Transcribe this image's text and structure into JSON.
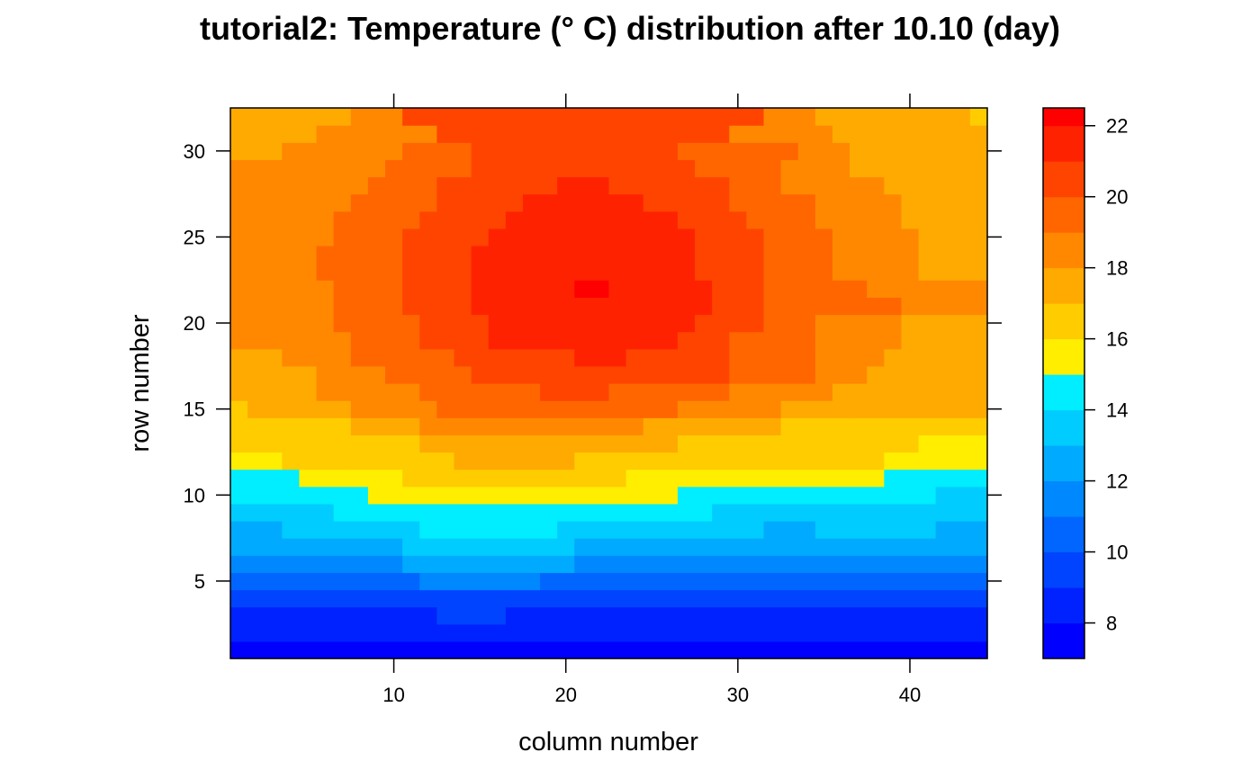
{
  "chart_data": {
    "type": "heatmap",
    "title": "tutorial2: Temperature (° C) distribution after 10.10 (day)",
    "xlabel": "column number",
    "ylabel": "row number",
    "xlim": [
      0.5,
      44.5
    ],
    "ylim": [
      0.5,
      32.5
    ],
    "x_ticks": [
      10,
      20,
      30,
      40
    ],
    "y_ticks": [
      5,
      10,
      15,
      20,
      25,
      30
    ],
    "grid": false,
    "legend": "right",
    "colorbar": {
      "min": 7,
      "max": 22.5,
      "ticks": [
        8,
        10,
        12,
        14,
        16,
        18,
        20,
        22
      ],
      "bands": [
        {
          "from": 7,
          "to": 8,
          "color": "#0000ff"
        },
        {
          "from": 8,
          "to": 9,
          "color": "#0022ff"
        },
        {
          "from": 9,
          "to": 10,
          "color": "#0044ff"
        },
        {
          "from": 10,
          "to": 11,
          "color": "#0066ff"
        },
        {
          "from": 11,
          "to": 12,
          "color": "#0088ff"
        },
        {
          "from": 12,
          "to": 13,
          "color": "#00aaff"
        },
        {
          "from": 13,
          "to": 14,
          "color": "#00ccff"
        },
        {
          "from": 14,
          "to": 15,
          "color": "#00eeff"
        },
        {
          "from": 15,
          "to": 16,
          "color": "#ffee00"
        },
        {
          "from": 16,
          "to": 17,
          "color": "#ffcc00"
        },
        {
          "from": 17,
          "to": 18,
          "color": "#ffaa00"
        },
        {
          "from": 18,
          "to": 19,
          "color": "#ff8800"
        },
        {
          "from": 19,
          "to": 20,
          "color": "#ff6600"
        },
        {
          "from": 20,
          "to": 21,
          "color": "#ff4400"
        },
        {
          "from": 21,
          "to": 22,
          "color": "#ff2200"
        },
        {
          "from": 22,
          "to": 22.5,
          "color": "#ff0000"
        }
      ]
    },
    "rows": [
      {
        "row": 1,
        "runs": [
          [
            1,
            44,
            7.5
          ]
        ]
      },
      {
        "row": 2,
        "runs": [
          [
            1,
            44,
            8.5
          ]
        ]
      },
      {
        "row": 3,
        "runs": [
          [
            1,
            12,
            8.5
          ],
          [
            13,
            16,
            9.5
          ],
          [
            17,
            44,
            8.5
          ]
        ]
      },
      {
        "row": 4,
        "runs": [
          [
            1,
            44,
            9.5
          ]
        ]
      },
      {
        "row": 5,
        "runs": [
          [
            1,
            11,
            10.5
          ],
          [
            12,
            18,
            11.5
          ],
          [
            19,
            44,
            10.5
          ]
        ]
      },
      {
        "row": 6,
        "runs": [
          [
            1,
            10,
            11.5
          ],
          [
            11,
            20,
            12.5
          ],
          [
            21,
            44,
            11.5
          ]
        ]
      },
      {
        "row": 7,
        "runs": [
          [
            1,
            10,
            12.5
          ],
          [
            11,
            20,
            13.5
          ],
          [
            21,
            44,
            12.5
          ]
        ]
      },
      {
        "row": 8,
        "runs": [
          [
            1,
            3,
            12.5
          ],
          [
            4,
            11,
            13.5
          ],
          [
            12,
            19,
            14.5
          ],
          [
            20,
            31,
            13.5
          ],
          [
            32,
            34,
            12.5
          ],
          [
            35,
            41,
            13.5
          ],
          [
            42,
            44,
            12.5
          ]
        ]
      },
      {
        "row": 9,
        "runs": [
          [
            1,
            6,
            13.5
          ],
          [
            7,
            28,
            14.5
          ],
          [
            29,
            44,
            13.5
          ]
        ]
      },
      {
        "row": 10,
        "runs": [
          [
            1,
            8,
            14.5
          ],
          [
            9,
            26,
            15.5
          ],
          [
            27,
            41,
            14.5
          ],
          [
            42,
            44,
            13.5
          ]
        ]
      },
      {
        "row": 11,
        "runs": [
          [
            1,
            4,
            14.5
          ],
          [
            5,
            10,
            15.5
          ],
          [
            11,
            23,
            16.5
          ],
          [
            24,
            38,
            15.5
          ],
          [
            39,
            41,
            14.5
          ],
          [
            42,
            44,
            14.5
          ]
        ]
      },
      {
        "row": 12,
        "runs": [
          [
            1,
            3,
            15.5
          ],
          [
            4,
            7,
            16.5
          ],
          [
            8,
            13,
            16.5
          ],
          [
            14,
            20,
            17.5
          ],
          [
            21,
            38,
            16.5
          ],
          [
            39,
            44,
            15.5
          ]
        ]
      },
      {
        "row": 13,
        "runs": [
          [
            1,
            3,
            16.5
          ],
          [
            4,
            11,
            16.5
          ],
          [
            12,
            26,
            17.5
          ],
          [
            27,
            38,
            16.5
          ],
          [
            39,
            40,
            16.5
          ],
          [
            41,
            44,
            15.5
          ]
        ]
      },
      {
        "row": 14,
        "runs": [
          [
            1,
            7,
            16.5
          ],
          [
            8,
            11,
            17.5
          ],
          [
            12,
            24,
            18.5
          ],
          [
            25,
            32,
            17.5
          ],
          [
            33,
            40,
            16.5
          ],
          [
            41,
            44,
            16.5
          ]
        ]
      },
      {
        "row": 15,
        "runs": [
          [
            1,
            1,
            16.5
          ],
          [
            2,
            7,
            17.5
          ],
          [
            8,
            12,
            18.5
          ],
          [
            13,
            26,
            19.5
          ],
          [
            27,
            32,
            18.5
          ],
          [
            33,
            36,
            17.5
          ],
          [
            37,
            44,
            17.5
          ]
        ]
      },
      {
        "row": 16,
        "runs": [
          [
            1,
            5,
            17.5
          ],
          [
            6,
            11,
            18.5
          ],
          [
            12,
            18,
            19.5
          ],
          [
            19,
            22,
            20.5
          ],
          [
            23,
            29,
            19.5
          ],
          [
            30,
            35,
            18.5
          ],
          [
            36,
            38,
            17.5
          ],
          [
            39,
            44,
            17.5
          ]
        ]
      },
      {
        "row": 17,
        "runs": [
          [
            1,
            5,
            17.5
          ],
          [
            6,
            9,
            18.5
          ],
          [
            10,
            14,
            19.5
          ],
          [
            15,
            29,
            20.5
          ],
          [
            30,
            34,
            19.5
          ],
          [
            35,
            37,
            18.5
          ],
          [
            38,
            41,
            17.5
          ],
          [
            42,
            44,
            17.5
          ]
        ]
      },
      {
        "row": 18,
        "runs": [
          [
            1,
            3,
            17.5
          ],
          [
            4,
            7,
            18.5
          ],
          [
            8,
            13,
            19.5
          ],
          [
            14,
            20,
            20.5
          ],
          [
            21,
            23,
            21.5
          ],
          [
            24,
            29,
            20.5
          ],
          [
            30,
            34,
            19.5
          ],
          [
            35,
            38,
            18.5
          ],
          [
            39,
            44,
            17.5
          ]
        ]
      },
      {
        "row": 19,
        "runs": [
          [
            1,
            7,
            18.5
          ],
          [
            8,
            11,
            19.5
          ],
          [
            12,
            15,
            20.5
          ],
          [
            16,
            26,
            21.5
          ],
          [
            27,
            29,
            20.5
          ],
          [
            30,
            34,
            19.5
          ],
          [
            35,
            39,
            18.5
          ],
          [
            40,
            44,
            17.5
          ]
        ]
      },
      {
        "row": 20,
        "runs": [
          [
            1,
            6,
            18.5
          ],
          [
            7,
            11,
            19.5
          ],
          [
            12,
            15,
            20.5
          ],
          [
            16,
            27,
            21.5
          ],
          [
            28,
            31,
            20.5
          ],
          [
            32,
            34,
            19.5
          ],
          [
            35,
            39,
            18.5
          ],
          [
            40,
            44,
            17.5
          ]
        ]
      },
      {
        "row": 21,
        "runs": [
          [
            1,
            6,
            18.5
          ],
          [
            7,
            10,
            19.5
          ],
          [
            11,
            14,
            20.5
          ],
          [
            15,
            28,
            21.5
          ],
          [
            29,
            31,
            20.5
          ],
          [
            32,
            39,
            19.5
          ],
          [
            40,
            44,
            18.5
          ]
        ]
      },
      {
        "row": 22,
        "runs": [
          [
            1,
            6,
            18.5
          ],
          [
            7,
            10,
            19.5
          ],
          [
            11,
            14,
            20.5
          ],
          [
            15,
            20,
            21.5
          ],
          [
            21,
            22,
            22.3
          ],
          [
            23,
            28,
            21.5
          ],
          [
            29,
            31,
            20.5
          ],
          [
            32,
            37,
            19.5
          ],
          [
            38,
            44,
            18.5
          ]
        ]
      },
      {
        "row": 23,
        "runs": [
          [
            1,
            5,
            18.5
          ],
          [
            6,
            10,
            19.5
          ],
          [
            11,
            14,
            20.5
          ],
          [
            15,
            27,
            21.5
          ],
          [
            28,
            31,
            20.5
          ],
          [
            32,
            35,
            19.5
          ],
          [
            36,
            40,
            18.5
          ],
          [
            41,
            44,
            17.5
          ]
        ]
      },
      {
        "row": 24,
        "runs": [
          [
            1,
            5,
            18.5
          ],
          [
            6,
            10,
            19.5
          ],
          [
            11,
            14,
            20.5
          ],
          [
            15,
            27,
            21.5
          ],
          [
            28,
            31,
            20.5
          ],
          [
            32,
            35,
            19.5
          ],
          [
            36,
            40,
            18.5
          ],
          [
            41,
            44,
            17.5
          ]
        ]
      },
      {
        "row": 25,
        "runs": [
          [
            1,
            6,
            18.5
          ],
          [
            7,
            10,
            19.5
          ],
          [
            11,
            15,
            20.5
          ],
          [
            16,
            27,
            21.5
          ],
          [
            28,
            31,
            20.5
          ],
          [
            32,
            35,
            19.5
          ],
          [
            36,
            40,
            18.5
          ],
          [
            41,
            44,
            17.5
          ]
        ]
      },
      {
        "row": 26,
        "runs": [
          [
            1,
            6,
            18.5
          ],
          [
            7,
            11,
            19.5
          ],
          [
            12,
            16,
            20.5
          ],
          [
            17,
            26,
            21.5
          ],
          [
            27,
            30,
            20.5
          ],
          [
            31,
            34,
            19.5
          ],
          [
            35,
            39,
            18.5
          ],
          [
            40,
            44,
            17.5
          ]
        ]
      },
      {
        "row": 27,
        "runs": [
          [
            1,
            7,
            18.5
          ],
          [
            8,
            12,
            19.5
          ],
          [
            13,
            17,
            20.5
          ],
          [
            18,
            24,
            21.5
          ],
          [
            25,
            29,
            20.5
          ],
          [
            30,
            34,
            19.5
          ],
          [
            35,
            39,
            18.5
          ],
          [
            40,
            44,
            17.5
          ]
        ]
      },
      {
        "row": 28,
        "runs": [
          [
            1,
            8,
            18.5
          ],
          [
            9,
            12,
            19.5
          ],
          [
            13,
            19,
            20.5
          ],
          [
            20,
            22,
            21.5
          ],
          [
            23,
            29,
            20.5
          ],
          [
            30,
            32,
            19.5
          ],
          [
            33,
            38,
            18.5
          ],
          [
            39,
            44,
            17.5
          ]
        ]
      },
      {
        "row": 29,
        "runs": [
          [
            1,
            9,
            18.5
          ],
          [
            10,
            14,
            19.5
          ],
          [
            15,
            27,
            20.5
          ],
          [
            28,
            32,
            19.5
          ],
          [
            33,
            36,
            18.5
          ],
          [
            37,
            44,
            17.5
          ]
        ]
      },
      {
        "row": 30,
        "runs": [
          [
            1,
            3,
            17.5
          ],
          [
            4,
            10,
            18.5
          ],
          [
            11,
            14,
            19.5
          ],
          [
            15,
            26,
            20.5
          ],
          [
            27,
            33,
            19.5
          ],
          [
            34,
            36,
            18.5
          ],
          [
            37,
            44,
            17.5
          ]
        ]
      },
      {
        "row": 31,
        "runs": [
          [
            1,
            5,
            17.5
          ],
          [
            6,
            12,
            18.5
          ],
          [
            13,
            29,
            20.5
          ],
          [
            30,
            35,
            18.5
          ],
          [
            36,
            44,
            17.5
          ]
        ]
      },
      {
        "row": 32,
        "runs": [
          [
            1,
            7,
            17.5
          ],
          [
            8,
            10,
            18.5
          ],
          [
            11,
            31,
            20.5
          ],
          [
            32,
            34,
            18.5
          ],
          [
            35,
            43,
            17.5
          ],
          [
            44,
            44,
            16.5
          ]
        ]
      }
    ]
  }
}
